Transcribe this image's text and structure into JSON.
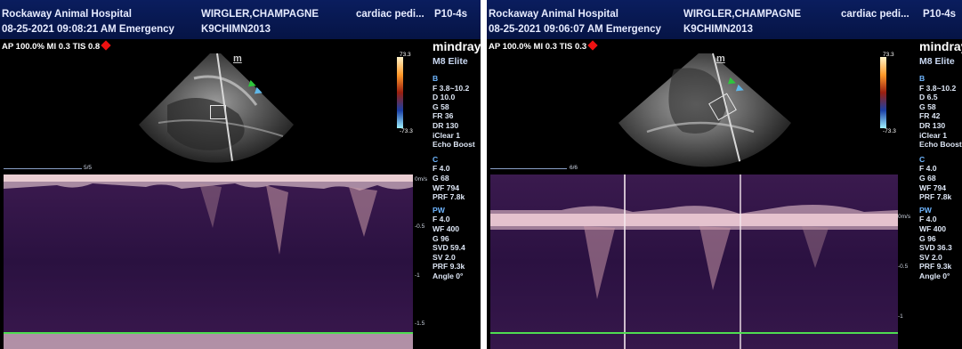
{
  "panels": [
    {
      "header": {
        "hospital": "Rockaway Animal Hospital",
        "datetime": "08-25-2021 09:08:21 AM Emergency",
        "patient_name": "WIRGLER,CHAMPAGNE",
        "patient_id": "K9CHIMN2013",
        "exam": "cardiac pedi...",
        "probe": "P10-4s"
      },
      "acoustic": "AP 100.0%  MI 0.3  TIS 0.8",
      "brand": "mindray",
      "model": "M8 Elite",
      "colorbar": {
        "top": "73.3",
        "bottom": "-73.3"
      },
      "b_params": [
        "B",
        "F 3.8~10.2",
        "D 10.0",
        "G 58",
        "FR 36",
        "DR 130",
        "iClear 1",
        "Echo Boost"
      ],
      "c_params": [
        "C",
        "F 4.0",
        "G 68",
        "WF 794",
        "PRF 7.8k"
      ],
      "pw_params": [
        "PW",
        "F 4.0",
        "WF 400",
        "G 96",
        "SVD 59.4",
        "SV 2.0",
        "PRF 9.3k",
        "Angle 0°"
      ],
      "time_label": "5/5",
      "scale_labels": [
        "0m/s",
        "-0.5",
        "-1",
        "-1.5"
      ],
      "m_marker": "m"
    },
    {
      "header": {
        "hospital": "Rockaway Animal Hospital",
        "datetime": "08-25-2021 09:06:07 AM Emergency",
        "patient_name": "WIRGLER,CHAMPAGNE",
        "patient_id": "K9CHIMN2013",
        "exam": "cardiac pedi...",
        "probe": "P10-4s"
      },
      "acoustic": "AP 100.0%  MI 0.3  TIS 0.3",
      "brand": "mindray",
      "model": "M8 Elite",
      "colorbar": {
        "top": "73.3",
        "bottom": "-73.3"
      },
      "b_params": [
        "B",
        "F 3.8~10.2",
        "D 6.5",
        "G 58",
        "FR 42",
        "DR 130",
        "iClear 1",
        "Echo Boost"
      ],
      "c_params": [
        "C",
        "F 4.0",
        "G 68",
        "WF 794",
        "PRF 7.8k"
      ],
      "pw_params": [
        "PW",
        "F 4.0",
        "WF 400",
        "G 96",
        "SVD 36.3",
        "SV 2.0",
        "PRF 9.3k",
        "Angle 0°"
      ],
      "time_label": "6/6",
      "scale_labels": [
        "0m/s",
        "-0.5",
        "-1"
      ],
      "m_marker": "m"
    }
  ],
  "colors": {
    "header_bg": "#0a1d5e",
    "spectrum_bg": "#1c0b2b",
    "section_label": "#6fb6ff",
    "baseline_green": "#4fdc52",
    "heart": "#e11111"
  }
}
